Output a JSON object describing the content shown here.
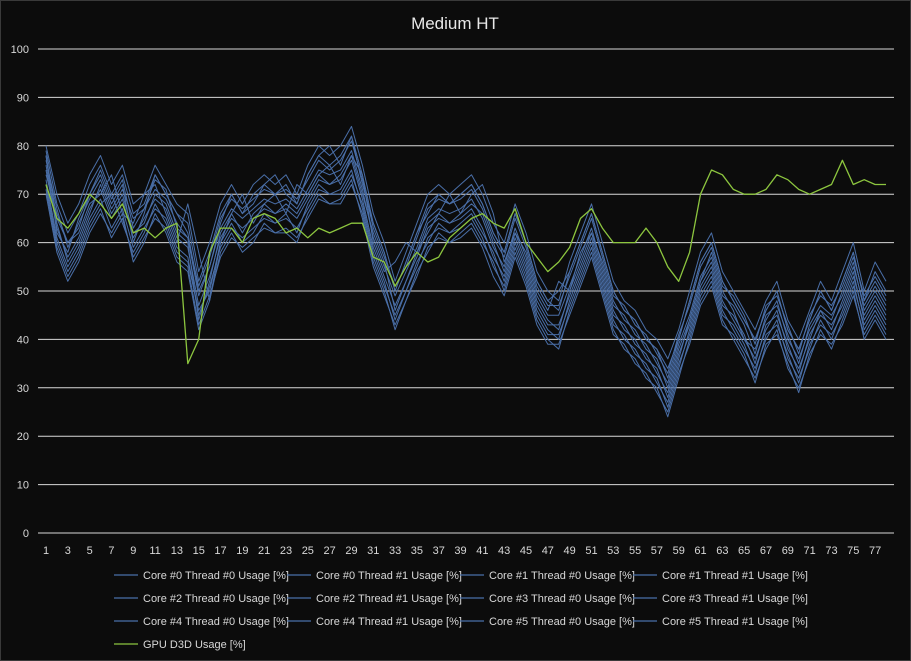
{
  "chart_data": {
    "type": "line",
    "title": "Medium HT",
    "xlabel": "",
    "ylabel": "",
    "ylim": [
      0,
      100
    ],
    "y_ticks": [
      0,
      10,
      20,
      30,
      40,
      50,
      60,
      70,
      80,
      90,
      100
    ],
    "x_range": [
      1,
      78
    ],
    "x_tick_labels": [
      1,
      3,
      5,
      7,
      9,
      11,
      13,
      15,
      17,
      19,
      21,
      23,
      25,
      27,
      29,
      31,
      33,
      35,
      37,
      39,
      41,
      43,
      45,
      47,
      49,
      51,
      53,
      55,
      57,
      59,
      61,
      63,
      65,
      67,
      69,
      71,
      73,
      75,
      77
    ],
    "grid": "horizontal",
    "legend_position": "bottom",
    "colors": {
      "core": "#4a6fa8",
      "gpu": "#8dc63f",
      "grid": "#d9d9d9",
      "background": "#0c0c0c"
    },
    "series": [
      {
        "name": "Core #0 Thread #0 Usage [%]",
        "color": "#4a6fa8",
        "values": [
          78,
          62,
          58,
          65,
          70,
          74,
          68,
          72,
          60,
          66,
          74,
          70,
          66,
          62,
          50,
          55,
          64,
          70,
          66,
          68,
          72,
          74,
          70,
          68,
          74,
          78,
          80,
          76,
          82,
          72,
          64,
          58,
          50,
          56,
          62,
          66,
          70,
          68,
          70,
          72,
          68,
          62,
          58,
          66,
          60,
          52,
          48,
          50,
          54,
          60,
          66,
          58,
          50,
          46,
          44,
          40,
          38,
          34,
          40,
          48,
          56,
          60,
          52,
          48,
          44,
          40,
          46,
          50,
          42,
          38,
          44,
          50,
          46,
          52,
          58,
          48,
          54,
          50
        ]
      },
      {
        "name": "Core #0 Thread #1 Usage [%]",
        "color": "#4a6fa8",
        "values": [
          74,
          66,
          60,
          62,
          68,
          70,
          74,
          66,
          64,
          70,
          72,
          66,
          60,
          68,
          58,
          48,
          60,
          66,
          70,
          64,
          68,
          70,
          66,
          72,
          70,
          74,
          76,
          72,
          78,
          74,
          60,
          54,
          56,
          60,
          58,
          62,
          66,
          70,
          66,
          70,
          72,
          66,
          56,
          62,
          58,
          50,
          46,
          52,
          50,
          58,
          62,
          56,
          48,
          44,
          42,
          38,
          36,
          30,
          38,
          44,
          52,
          58,
          50,
          46,
          40,
          38,
          44,
          48,
          40,
          36,
          42,
          46,
          44,
          50,
          56,
          46,
          50,
          46
        ]
      },
      {
        "name": "Core #1 Thread #0 Usage [%]",
        "color": "#4a6fa8",
        "values": [
          80,
          70,
          64,
          68,
          74,
          78,
          72,
          76,
          68,
          70,
          76,
          72,
          68,
          66,
          54,
          60,
          68,
          72,
          68,
          72,
          74,
          72,
          74,
          70,
          76,
          80,
          78,
          80,
          84,
          76,
          66,
          60,
          52,
          58,
          64,
          70,
          72,
          70,
          72,
          74,
          70,
          64,
          60,
          68,
          62,
          54,
          50,
          48,
          56,
          62,
          68,
          60,
          52,
          48,
          46,
          42,
          40,
          36,
          42,
          50,
          58,
          62,
          54,
          50,
          46,
          42,
          48,
          52,
          44,
          40,
          46,
          52,
          48,
          54,
          60,
          50,
          56,
          52
        ]
      },
      {
        "name": "Core #1 Thread #1 Usage [%]",
        "color": "#4a6fa8",
        "values": [
          76,
          64,
          56,
          60,
          66,
          72,
          66,
          70,
          62,
          64,
          70,
          68,
          62,
          60,
          44,
          52,
          62,
          66,
          62,
          66,
          68,
          66,
          68,
          66,
          70,
          74,
          72,
          74,
          78,
          70,
          62,
          56,
          46,
          52,
          58,
          64,
          66,
          64,
          66,
          68,
          66,
          60,
          54,
          62,
          56,
          48,
          44,
          42,
          50,
          56,
          62,
          54,
          46,
          42,
          40,
          36,
          34,
          28,
          36,
          44,
          52,
          56,
          48,
          44,
          40,
          36,
          42,
          46,
          38,
          34,
          40,
          46,
          42,
          48,
          54,
          44,
          48,
          44
        ]
      },
      {
        "name": "Core #2 Thread #0 Usage [%]",
        "color": "#4a6fa8",
        "values": [
          72,
          60,
          54,
          58,
          64,
          68,
          70,
          64,
          58,
          62,
          68,
          64,
          58,
          56,
          46,
          50,
          60,
          64,
          60,
          62,
          66,
          64,
          66,
          62,
          68,
          72,
          70,
          70,
          74,
          68,
          58,
          52,
          44,
          50,
          56,
          60,
          64,
          62,
          64,
          66,
          62,
          58,
          52,
          60,
          54,
          46,
          42,
          40,
          48,
          54,
          60,
          52,
          44,
          40,
          38,
          34,
          32,
          26,
          34,
          42,
          50,
          54,
          46,
          42,
          38,
          34,
          40,
          44,
          36,
          32,
          38,
          44,
          40,
          46,
          52,
          42,
          46,
          42
        ]
      },
      {
        "name": "Core #2 Thread #1 Usage [%]",
        "color": "#4a6fa8",
        "values": [
          79,
          68,
          62,
          66,
          72,
          76,
          70,
          74,
          66,
          68,
          74,
          70,
          66,
          64,
          52,
          58,
          66,
          70,
          66,
          70,
          72,
          70,
          72,
          68,
          74,
          78,
          76,
          78,
          82,
          74,
          64,
          58,
          50,
          56,
          62,
          68,
          70,
          68,
          70,
          72,
          68,
          62,
          58,
          66,
          60,
          52,
          48,
          46,
          54,
          60,
          66,
          58,
          50,
          46,
          44,
          40,
          38,
          32,
          40,
          48,
          56,
          60,
          52,
          48,
          44,
          40,
          46,
          50,
          42,
          38,
          44,
          50,
          46,
          52,
          58,
          48,
          52,
          48
        ]
      },
      {
        "name": "Core #3 Thread #0 Usage [%]",
        "color": "#4a6fa8",
        "values": [
          70,
          58,
          52,
          56,
          62,
          66,
          62,
          66,
          56,
          60,
          66,
          62,
          56,
          54,
          42,
          48,
          58,
          62,
          58,
          60,
          64,
          62,
          62,
          60,
          66,
          70,
          68,
          68,
          72,
          66,
          56,
          50,
          42,
          48,
          54,
          58,
          62,
          60,
          62,
          64,
          60,
          56,
          50,
          58,
          52,
          44,
          40,
          38,
          46,
          52,
          58,
          50,
          42,
          38,
          36,
          32,
          30,
          24,
          32,
          40,
          48,
          52,
          44,
          40,
          36,
          32,
          38,
          42,
          34,
          30,
          36,
          42,
          38,
          44,
          50,
          40,
          44,
          40
        ]
      },
      {
        "name": "Core #3 Thread #1 Usage [%]",
        "color": "#4a6fa8",
        "values": [
          77,
          67,
          59,
          64,
          69,
          73,
          67,
          71,
          65,
          67,
          71,
          69,
          64,
          61,
          49,
          55,
          63,
          67,
          65,
          67,
          69,
          68,
          69,
          67,
          71,
          75,
          74,
          75,
          79,
          71,
          61,
          55,
          49,
          54,
          59,
          65,
          67,
          66,
          67,
          69,
          65,
          59,
          55,
          63,
          57,
          49,
          45,
          45,
          51,
          57,
          63,
          55,
          47,
          45,
          41,
          39,
          35,
          31,
          39,
          45,
          53,
          57,
          49,
          47,
          43,
          37,
          45,
          47,
          41,
          35,
          43,
          47,
          45,
          49,
          55,
          47,
          51,
          47
        ]
      },
      {
        "name": "Core #4 Thread #0 Usage [%]",
        "color": "#4a6fa8",
        "values": [
          75,
          63,
          57,
          61,
          67,
          71,
          65,
          69,
          61,
          65,
          69,
          67,
          61,
          59,
          47,
          53,
          61,
          65,
          63,
          65,
          67,
          66,
          67,
          65,
          69,
          73,
          72,
          73,
          77,
          69,
          59,
          53,
          47,
          52,
          57,
          63,
          65,
          64,
          65,
          67,
          63,
          57,
          53,
          61,
          55,
          47,
          43,
          43,
          49,
          55,
          61,
          53,
          45,
          43,
          39,
          37,
          33,
          29,
          37,
          43,
          51,
          55,
          47,
          45,
          41,
          35,
          43,
          45,
          39,
          33,
          41,
          45,
          43,
          47,
          53,
          45,
          49,
          45
        ]
      },
      {
        "name": "Core #4 Thread #1 Usage [%]",
        "color": "#4a6fa8",
        "values": [
          73,
          61,
          55,
          59,
          65,
          69,
          63,
          67,
          59,
          63,
          67,
          65,
          59,
          57,
          45,
          51,
          59,
          63,
          61,
          63,
          65,
          64,
          65,
          63,
          67,
          71,
          70,
          71,
          75,
          67,
          57,
          51,
          45,
          50,
          55,
          61,
          63,
          62,
          63,
          65,
          61,
          55,
          51,
          59,
          53,
          45,
          41,
          41,
          47,
          53,
          59,
          51,
          43,
          41,
          37,
          35,
          31,
          27,
          35,
          41,
          49,
          53,
          45,
          43,
          39,
          33,
          41,
          43,
          37,
          31,
          39,
          43,
          41,
          45,
          51,
          43,
          47,
          43
        ]
      },
      {
        "name": "Core #5 Thread #0 Usage [%]",
        "color": "#4a6fa8",
        "values": [
          78,
          65,
          60,
          63,
          70,
          75,
          69,
          73,
          63,
          67,
          73,
          71,
          63,
          61,
          51,
          57,
          65,
          69,
          67,
          69,
          71,
          70,
          71,
          69,
          73,
          77,
          75,
          77,
          81,
          73,
          63,
          57,
          51,
          55,
          61,
          67,
          69,
          68,
          69,
          71,
          67,
          61,
          57,
          65,
          59,
          51,
          47,
          47,
          53,
          59,
          65,
          57,
          49,
          47,
          43,
          41,
          37,
          33,
          41,
          47,
          55,
          59,
          51,
          49,
          45,
          39,
          47,
          49,
          43,
          37,
          45,
          49,
          47,
          51,
          57,
          49,
          53,
          49
        ]
      },
      {
        "name": "Core #5 Thread #1 Usage [%]",
        "color": "#4a6fa8",
        "values": [
          71,
          59,
          53,
          57,
          63,
          67,
          61,
          65,
          57,
          61,
          65,
          63,
          57,
          55,
          43,
          49,
          57,
          61,
          59,
          61,
          63,
          62,
          63,
          61,
          65,
          69,
          68,
          69,
          73,
          65,
          55,
          49,
          43,
          48,
          53,
          59,
          61,
          60,
          61,
          63,
          59,
          53,
          49,
          57,
          51,
          43,
          39,
          39,
          45,
          51,
          57,
          49,
          41,
          39,
          35,
          33,
          29,
          25,
          33,
          39,
          47,
          51,
          43,
          41,
          37,
          31,
          39,
          41,
          35,
          29,
          37,
          41,
          39,
          43,
          49,
          41,
          45,
          41
        ]
      },
      {
        "name": "GPU D3D Usage [%]",
        "color": "#8dc63f",
        "values": [
          72,
          65,
          63,
          66,
          70,
          68,
          65,
          68,
          62,
          63,
          61,
          63,
          64,
          35,
          40,
          58,
          63,
          63,
          60,
          65,
          66,
          65,
          62,
          63,
          61,
          63,
          62,
          63,
          64,
          64,
          57,
          56,
          51,
          55,
          58,
          56,
          57,
          61,
          63,
          65,
          66,
          64,
          63,
          67,
          60,
          57,
          54,
          56,
          59,
          65,
          67,
          63,
          60,
          60,
          60,
          63,
          60,
          55,
          52,
          58,
          70,
          75,
          74,
          71,
          70,
          70,
          71,
          74,
          73,
          71,
          70,
          71,
          72,
          77,
          72,
          73,
          72,
          72
        ]
      }
    ]
  }
}
